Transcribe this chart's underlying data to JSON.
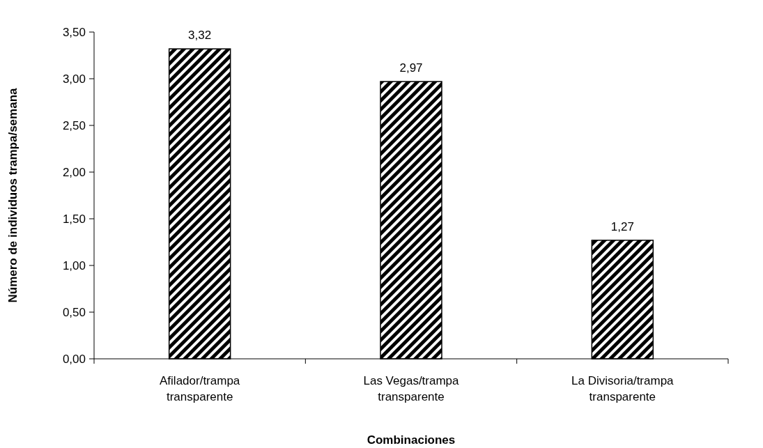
{
  "chart_data": {
    "type": "bar",
    "xlabel": "Combinaciones",
    "ylabel": "Número de individuos trampa/semana",
    "categories": [
      "Afilador/trampa transparente",
      "Las Vegas/trampa transparente",
      "La Divisoria/trampa transparente"
    ],
    "values": [
      3.32,
      2.97,
      1.27
    ],
    "value_labels": [
      "3,32",
      "2,97",
      "1,27"
    ],
    "color": "#000000",
    "ylim": [
      0,
      3.5
    ],
    "yticks": [
      {
        "value": 0,
        "label": "0,00"
      },
      {
        "value": 0.5,
        "label": "0,50"
      },
      {
        "value": 1,
        "label": "1,00"
      },
      {
        "value": 1.5,
        "label": "1,50"
      },
      {
        "value": 2,
        "label": "2,00"
      },
      {
        "value": 2.5,
        "label": "2,50"
      },
      {
        "value": 3,
        "label": "3,00"
      },
      {
        "value": 3.5,
        "label": "3,50"
      }
    ]
  }
}
